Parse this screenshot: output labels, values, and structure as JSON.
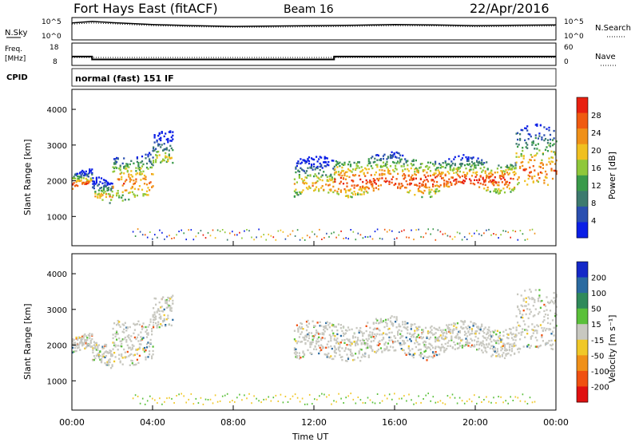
{
  "header": {
    "station": "Fort Hays East (fitACF)",
    "beam": "Beam 16",
    "date": "22/Apr/2016"
  },
  "chart_data": [
    {
      "type": "line",
      "name": "noise-panel",
      "left_label": "N.Sky",
      "right_label": "N.Search",
      "left_ticks": [
        "10^5",
        "10^0"
      ],
      "right_ticks": [
        "10^5",
        "10^0"
      ],
      "yscale": "log",
      "x": [
        0,
        1,
        2,
        4,
        6,
        8,
        10,
        12,
        14,
        16,
        18,
        20,
        22,
        24
      ],
      "sky": [
        4.0,
        4.4,
        4.1,
        3.6,
        3.3,
        3.1,
        3.2,
        3.3,
        3.4,
        3.6,
        3.5,
        3.3,
        3.4,
        3.5
      ],
      "search": [
        3.7,
        4.0,
        3.8,
        3.3,
        3.0,
        2.9,
        2.9,
        3.0,
        3.1,
        3.3,
        3.2,
        3.0,
        3.1,
        3.2
      ]
    },
    {
      "type": "line",
      "name": "frequency-panel",
      "left_label": "Freq. [MHz]",
      "right_label": "Nave",
      "left_ticks": [
        "18",
        "8"
      ],
      "right_ticks": [
        "60",
        "0"
      ],
      "freq_segments": [
        {
          "from": 0,
          "to": 1,
          "value": 11.8
        },
        {
          "from": 1,
          "to": 13,
          "value": 10.3
        },
        {
          "from": 13,
          "to": 24,
          "value": 11.8
        }
      ],
      "nave_value": 20
    },
    {
      "type": "table",
      "name": "cpid-panel",
      "label": "CPID",
      "text": "normal (fast) 151 IF"
    },
    {
      "type": "heatmap",
      "name": "power-panel",
      "ylabel": "Slant Range [km]",
      "yticks": [
        "1000",
        "2000",
        "3000",
        "4000"
      ],
      "ylim": [
        180,
        4560
      ],
      "colorbar_title": "Power [dB]",
      "colorbar_ticks": [
        "28",
        "24",
        "20",
        "16",
        "12",
        "8",
        "4"
      ],
      "colors": [
        "#0a1ee6",
        "#2a4fb0",
        "#3d7a6e",
        "#3a9a4a",
        "#8fc83a",
        "#f0c020",
        "#f09018",
        "#f05a10",
        "#e82010"
      ],
      "bands": [
        {
          "x": [
            0,
            1
          ],
          "ranges": [
            1800,
            2200
          ],
          "level": 7
        },
        {
          "x": [
            1,
            2
          ],
          "ranges": [
            1400,
            2000
          ],
          "level": 5
        },
        {
          "x": [
            2,
            4
          ],
          "ranges": [
            1600,
            2800
          ],
          "level": 6
        },
        {
          "x": [
            4,
            5
          ],
          "ranges": [
            2400,
            3300
          ],
          "level": 4
        },
        {
          "x": [
            11,
            13
          ],
          "ranges": [
            1600,
            2600
          ],
          "level": 5
        },
        {
          "x": [
            13,
            18
          ],
          "ranges": [
            1700,
            2700
          ],
          "level": 7
        },
        {
          "x": [
            18,
            22
          ],
          "ranges": [
            1800,
            2600
          ],
          "level": 7
        },
        {
          "x": [
            22,
            24
          ],
          "ranges": [
            1800,
            3500
          ],
          "level": 6
        }
      ]
    },
    {
      "type": "heatmap",
      "name": "velocity-panel",
      "ylabel": "Slant Range [km]",
      "xlabel": "Time UT",
      "yticks": [
        "1000",
        "2000",
        "3000",
        "4000"
      ],
      "ylim": [
        180,
        4560
      ],
      "xticks": [
        "00:00",
        "04:00",
        "08:00",
        "12:00",
        "16:00",
        "20:00",
        "00:00"
      ],
      "colorbar_title": "Velocity [m s⁻¹]",
      "colorbar_ticks": [
        "200",
        "100",
        "50",
        "15",
        "-15",
        "-50",
        "-100",
        "-200"
      ],
      "colors": [
        "#1428c8",
        "#2a6aa0",
        "#2f8a5a",
        "#5ac03a",
        "#c8c8c0",
        "#f0c828",
        "#f09018",
        "#f05010",
        "#e01010"
      ]
    }
  ]
}
